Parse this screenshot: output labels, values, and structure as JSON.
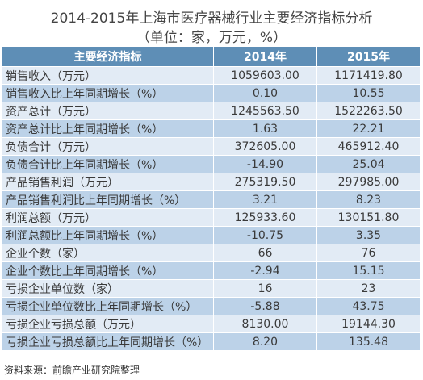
{
  "title_line1": "2014-2015年上海市医疗器械行业主要经济指标分析",
  "title_line2": "（单位：家，万元，%）",
  "table": {
    "headers": [
      "主要经济指标",
      "2014年",
      "2015年"
    ],
    "rows": [
      {
        "label": "销售收入（万元）",
        "y2014": "1059603.00",
        "y2015": "1171419.80"
      },
      {
        "label": "销售收入比上年同期增长（%）",
        "y2014": "0.10",
        "y2015": "10.55"
      },
      {
        "label": "资产总计（万元）",
        "y2014": "1245563.50",
        "y2015": "1522263.50"
      },
      {
        "label": "资产总计比上年同期增长（%）",
        "y2014": "1.63",
        "y2015": "22.21"
      },
      {
        "label": "负债合计（万元）",
        "y2014": "372605.00",
        "y2015": "465912.40"
      },
      {
        "label": "负债合计比上年同期增长（%）",
        "y2014": "-14.90",
        "y2015": "25.04"
      },
      {
        "label": "产品销售利润（万元）",
        "y2014": "275319.50",
        "y2015": "297985.00"
      },
      {
        "label": "产品销售利润比上年同期增长（%）",
        "y2014": "3.21",
        "y2015": "8.23"
      },
      {
        "label": "利润总额（万元）",
        "y2014": "125933.60",
        "y2015": "130151.80"
      },
      {
        "label": "利润总额比上年同期增长（%）",
        "y2014": "-10.75",
        "y2015": "3.35"
      },
      {
        "label": "企业个数（家）",
        "y2014": "66",
        "y2015": "76"
      },
      {
        "label": "企业个数比上年同期增长（%）",
        "y2014": "-2.94",
        "y2015": "15.15"
      },
      {
        "label": "亏损企业单位数（家）",
        "y2014": "16",
        "y2015": "23"
      },
      {
        "label": "亏损企业单位数比上年同期增长（%）",
        "y2014": "-5.88",
        "y2015": "43.75"
      },
      {
        "label": "亏损企业亏损总额（万元）",
        "y2014": "8130.00",
        "y2015": "19144.30"
      },
      {
        "label": "亏损企业亏损总额比上年同期增长（%）",
        "y2014": "8.20",
        "y2015": "135.48"
      }
    ]
  },
  "source": "资料来源：前瞻产业研究院整理",
  "colors": {
    "header_bg": "#5e8eb6",
    "row_light": "#e2ebf5",
    "row_dark": "#bcd2e8"
  }
}
